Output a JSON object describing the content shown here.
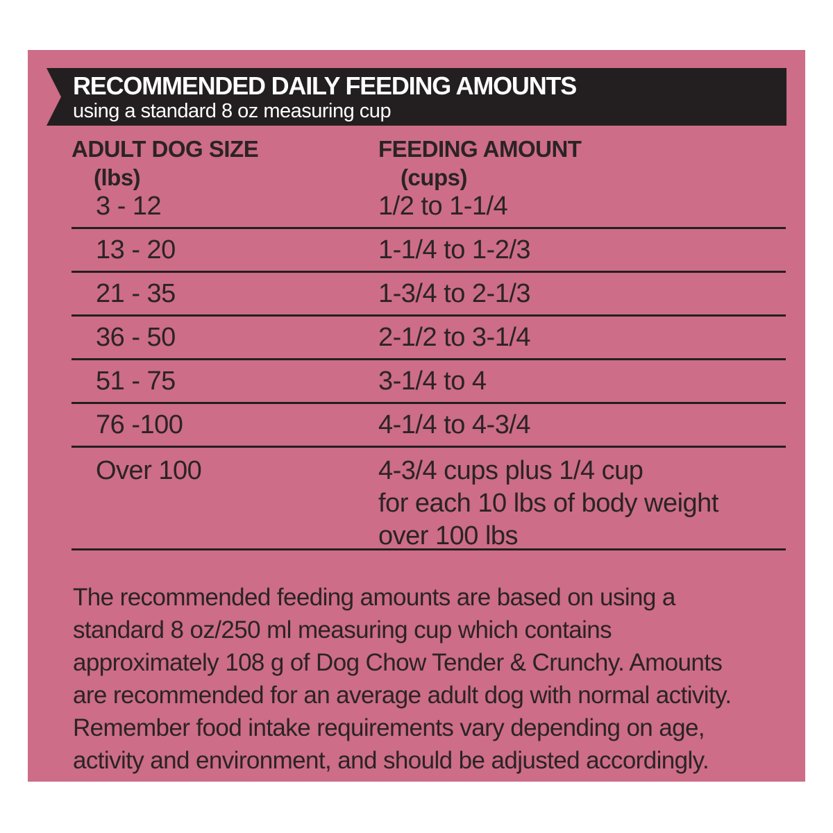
{
  "colors": {
    "page_bg": "#ffffff",
    "panel_bg": "#cd6d87",
    "banner_bg": "#231f20",
    "banner_text": "#ffffff",
    "text": "#2b2326",
    "rule": "#231f20"
  },
  "banner": {
    "title": "RECOMMENDED DAILY FEEDING AMOUNTS",
    "subtitle": "using a standard 8 oz measuring cup"
  },
  "table": {
    "col1_header": "ADULT DOG SIZE",
    "col1_subheader": "(lbs)",
    "col2_header": "FEEDING AMOUNT",
    "col2_subheader": "(cups)",
    "rows": [
      {
        "size": "3 - 12",
        "amount": "1/2 to 1-1/4"
      },
      {
        "size": "13 - 20",
        "amount": "1-1/4 to 1-2/3"
      },
      {
        "size": "21 - 35",
        "amount": "1-3/4 to 2-1/3"
      },
      {
        "size": "36 - 50",
        "amount": "2-1/2 to 3-1/4"
      },
      {
        "size": "51 - 75",
        "amount": "3-1/4 to 4"
      },
      {
        "size": "76 -100",
        "amount": "4-1/4 to 4-3/4"
      },
      {
        "size": "Over 100",
        "amount": "4-3/4 cups plus 1/4 cup\nfor each 10 lbs of body weight\nover 100 lbs"
      }
    ]
  },
  "footnote": "The recommended feeding amounts are based on using a\nstandard 8 oz/250 ml measuring cup which contains\napproximately 108 g of Dog Chow Tender & Crunchy. Amounts\nare recommended for an average adult dog with normal activity.\nRemember food intake requirements vary depending on age,\nactivity and environment, and should be adjusted accordingly."
}
